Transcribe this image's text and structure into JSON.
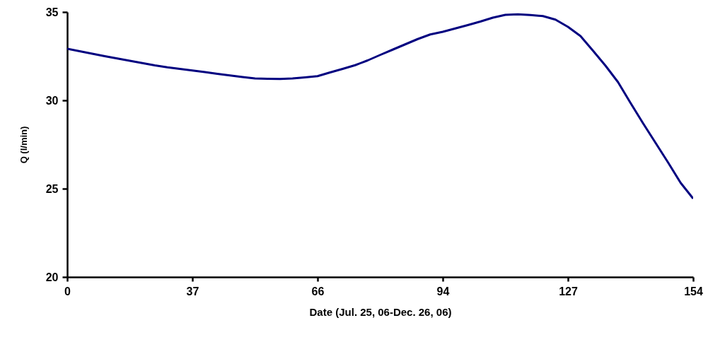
{
  "chart_data": {
    "type": "line",
    "xlabel": "Date (Jul. 25, 06-Dec. 26, 06)",
    "ylabel": "Q (l/min)",
    "categories": [
      "0",
      null,
      null,
      null,
      null,
      null,
      null,
      null,
      null,
      null,
      "37",
      null,
      null,
      null,
      null,
      null,
      null,
      null,
      null,
      null,
      "66",
      null,
      null,
      null,
      null,
      null,
      null,
      null,
      null,
      null,
      "94",
      null,
      null,
      null,
      null,
      null,
      null,
      null,
      null,
      null,
      "127",
      null,
      null,
      null,
      null,
      null,
      null,
      null,
      null,
      null,
      "154"
    ],
    "series": [
      {
        "color": "#000080",
        "values": [
          32.92,
          32.78,
          32.64,
          32.5,
          32.37,
          32.24,
          32.11,
          31.98,
          31.87,
          31.78,
          31.69,
          31.6,
          31.5,
          31.41,
          31.32,
          31.24,
          31.22,
          31.21,
          31.24,
          31.3,
          31.37,
          31.58,
          31.78,
          31.99,
          32.26,
          32.57,
          32.87,
          33.17,
          33.47,
          33.73,
          33.88,
          34.07,
          34.26,
          34.46,
          34.68,
          34.84,
          34.87,
          34.83,
          34.77,
          34.57,
          34.16,
          33.64,
          32.81,
          31.96,
          31.03,
          29.85,
          28.7,
          27.59,
          26.48,
          25.33,
          24.44
        ]
      }
    ],
    "ylim": [
      20,
      35
    ],
    "yticks": [
      20,
      25,
      30,
      35
    ],
    "grid": false,
    "marker": "none",
    "line_style": "solid"
  }
}
